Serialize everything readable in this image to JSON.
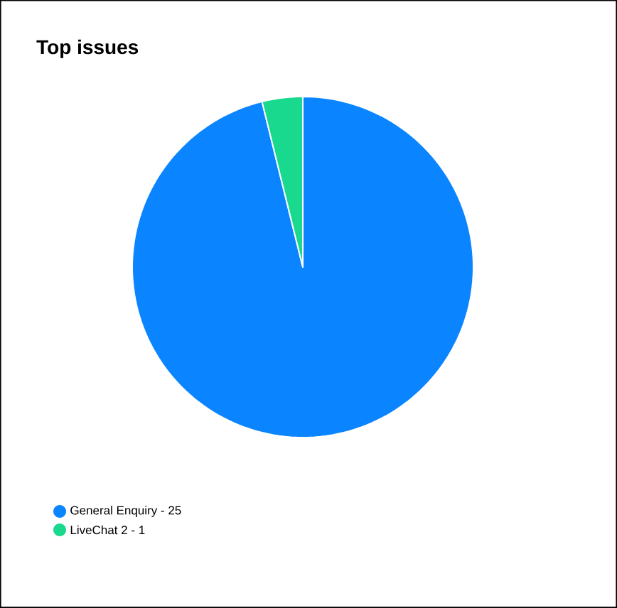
{
  "chart_data": {
    "type": "pie",
    "title": "Top issues",
    "categories": [
      "General Enquiry -",
      "LiveChat 2 -"
    ],
    "data_labels": true,
    "values": [
      25,
      1
    ],
    "colors": [
      "#0a84ff",
      "#19d98e"
    ],
    "legend": "bottom left"
  }
}
